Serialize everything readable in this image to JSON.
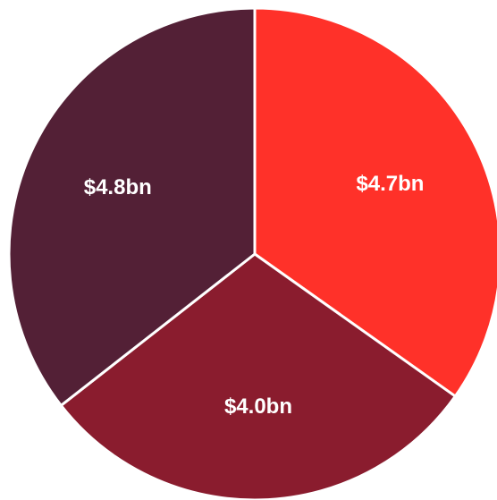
{
  "chart_data": {
    "type": "pie",
    "slices": [
      {
        "label": "$4.7bn",
        "value": 4.7,
        "color": "#ff3129"
      },
      {
        "label": "$4.0bn",
        "value": 4.0,
        "color": "#8a1c2e"
      },
      {
        "label": "$4.8bn",
        "value": 4.8,
        "color": "#532036"
      }
    ],
    "start_angle_deg": 0,
    "direction": "clockwise",
    "legend": "none"
  }
}
